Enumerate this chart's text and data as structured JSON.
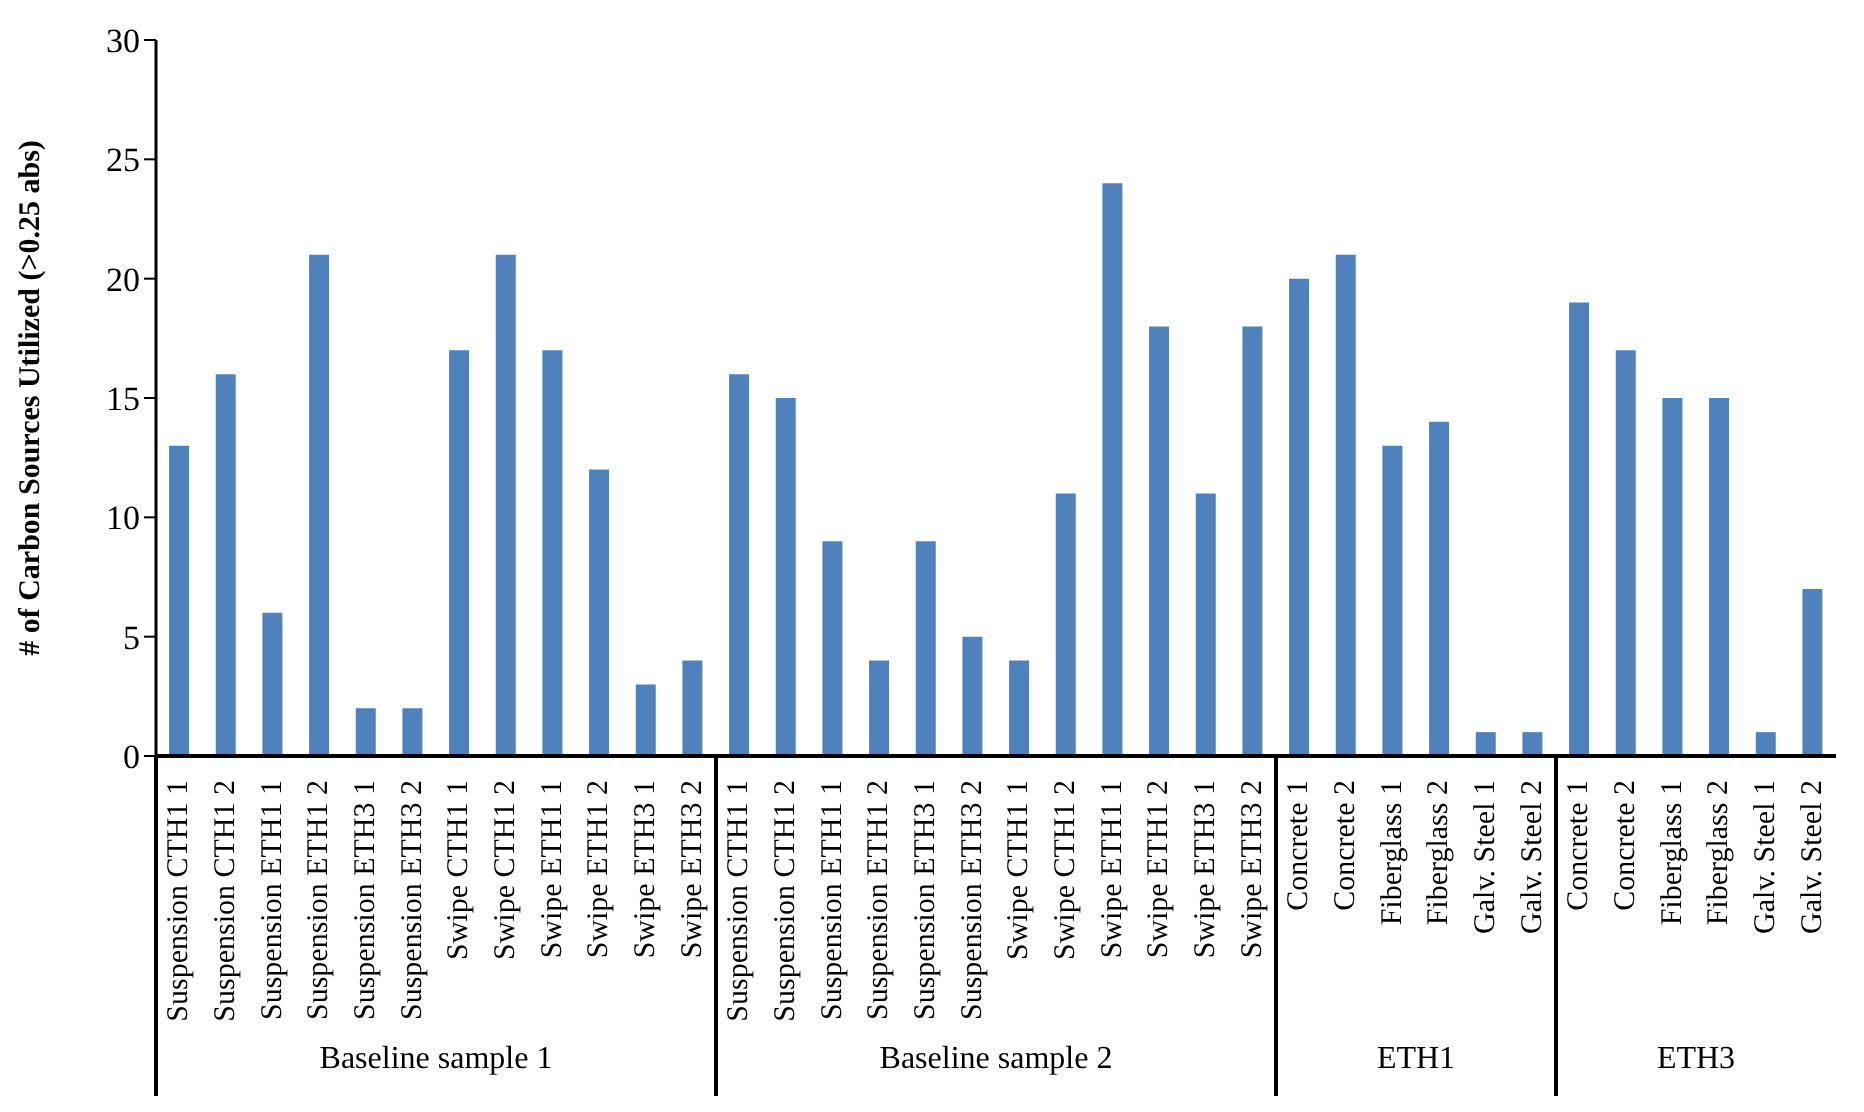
{
  "chart_data": {
    "type": "bar",
    "ylabel": "# of Carbon Sources Utilized (>0.25 abs)",
    "categories": [
      "Suspension CTH1 1",
      "Suspension CTH1 2",
      "Suspension ETH1 1",
      "Suspension ETH1 2",
      "Suspension ETH3 1",
      "Suspension ETH3 2",
      "Swipe CTH1 1",
      "Swipe CTH1 2",
      "Swipe ETH1 1",
      "Swipe ETH1 2",
      "Swipe ETH3 1",
      "Swipe ETH3 2",
      "Suspension CTH1 1",
      "Suspension CTH1 2",
      "Suspension ETH1 1",
      "Suspension ETH1 2",
      "Suspension ETH3 1",
      "Suspension ETH3 2",
      "Swipe CTH1 1",
      "Swipe CTH1 2",
      "Swipe ETH1 1",
      "Swipe ETH1 2",
      "Swipe ETH3 1",
      "Swipe ETH3 2",
      "Concrete 1",
      "Concrete 2",
      "Fiberglass 1",
      "Fiberglass 2",
      "Galv. Steel 1",
      "Galv. Steel 2",
      "Concrete 1",
      "Concrete 2",
      "Fiberglass 1",
      "Fiberglass 2",
      "Galv. Steel 1",
      "Galv. Steel 2"
    ],
    "values": [
      13,
      16,
      6,
      21,
      2,
      2,
      17,
      21,
      17,
      12,
      3,
      4,
      16,
      15,
      9,
      4,
      9,
      5,
      4,
      11,
      24,
      18,
      11,
      18,
      20,
      21,
      13,
      14,
      1,
      1,
      19,
      17,
      15,
      15,
      1,
      7
    ],
    "color": "#4f81bd",
    "ylim": [
      0,
      30
    ],
    "yticks": [
      0,
      5,
      10,
      15,
      20,
      25,
      30
    ],
    "grid": false,
    "legend": false,
    "annotations": [
      "Baseline sample 1",
      "Baseline sample 2",
      "ETH1",
      "ETH3"
    ]
  }
}
